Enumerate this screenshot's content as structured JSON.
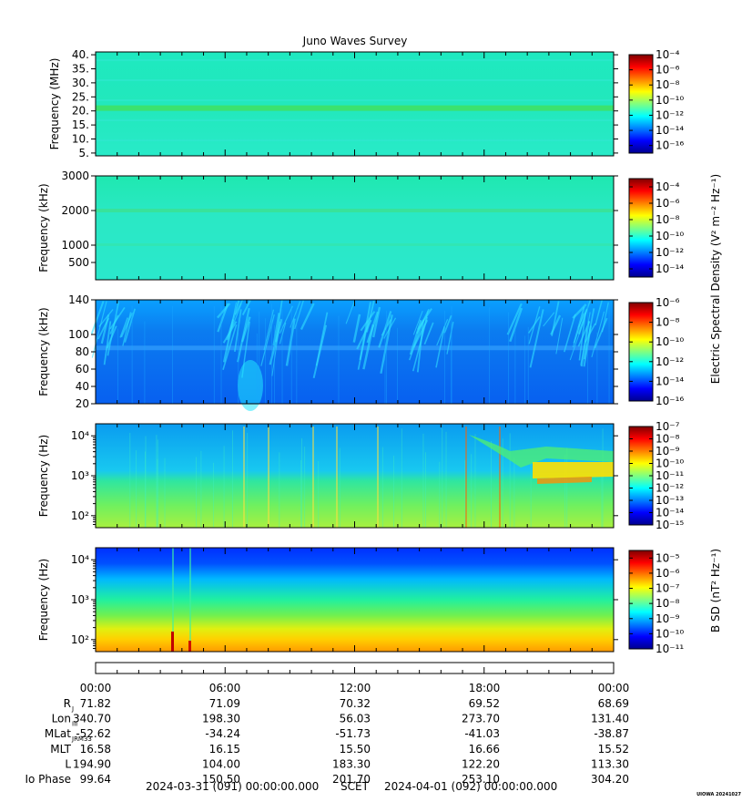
{
  "title": "Juno Waves Survey",
  "credit": "UIOWA 20241027",
  "colors": {
    "jet": [
      "#00008f",
      "#0000ff",
      "#0080ff",
      "#00ffff",
      "#80ff80",
      "#ffff00",
      "#ff8000",
      "#ff0000",
      "#800000"
    ]
  },
  "chart_data": [
    {
      "type": "heatmap",
      "title": "Juno Waves Survey",
      "ylabel": "Frequency (MHz)",
      "yscale": "linear",
      "ylim": [
        4,
        41
      ],
      "yticks": [
        {
          "v": 5,
          "t": "5."
        },
        {
          "v": 10,
          "t": "10."
        },
        {
          "v": 15,
          "t": "15."
        },
        {
          "v": 20,
          "t": "20."
        },
        {
          "v": 25,
          "t": "25."
        },
        {
          "v": 30,
          "t": "30."
        },
        {
          "v": 35,
          "t": "35."
        },
        {
          "v": 40,
          "t": "40."
        }
      ],
      "colorbar": {
        "scale": "log",
        "range_exp": [
          -17,
          -4
        ],
        "tick_exps": [
          -4,
          -6,
          -8,
          -10,
          -12,
          -14,
          -16
        ]
      },
      "pattern": "flat-band"
    },
    {
      "type": "heatmap",
      "ylabel": "Frequency (kHz)",
      "yscale": "linear",
      "ylim": [
        0,
        3000
      ],
      "yticks": [
        {
          "v": 500,
          "t": "500"
        },
        {
          "v": 1000,
          "t": "1000"
        },
        {
          "v": 2000,
          "t": "2000"
        },
        {
          "v": 3000,
          "t": "3000"
        }
      ],
      "colorbar": {
        "scale": "log",
        "range_exp": [
          -15,
          -3
        ],
        "tick_exps": [
          -4,
          -6,
          -8,
          -10,
          -12,
          -14
        ],
        "label": "Electric Spectral Density (V² m⁻² Hz⁻¹)"
      },
      "pattern": "flat"
    },
    {
      "type": "heatmap",
      "ylabel": "Frequency (kHz)",
      "yscale": "linear",
      "ylim": [
        20,
        140
      ],
      "yticks": [
        {
          "v": 20,
          "t": "20"
        },
        {
          "v": 40,
          "t": "40"
        },
        {
          "v": 60,
          "t": "60"
        },
        {
          "v": 80,
          "t": "80"
        },
        {
          "v": 100,
          "t": "100"
        },
        {
          "v": 140,
          "t": "140"
        }
      ],
      "colorbar": {
        "scale": "log",
        "range_exp": [
          -16,
          -6
        ],
        "tick_exps": [
          -6,
          -8,
          -10,
          -12,
          -14,
          -16
        ]
      },
      "pattern": "hom"
    },
    {
      "type": "heatmap",
      "ylabel": "Frequency (Hz)",
      "yscale": "log",
      "ylim": [
        50,
        20000
      ],
      "yticks": [
        {
          "v": 100,
          "t": "10²"
        },
        {
          "v": 1000,
          "t": "10³"
        },
        {
          "v": 10000,
          "t": "10⁴"
        }
      ],
      "colorbar": {
        "scale": "log",
        "range_exp": [
          -15,
          -7
        ],
        "tick_exps": [
          -7,
          -8,
          -9,
          -10,
          -11,
          -12,
          -13,
          -14,
          -15
        ]
      },
      "pattern": "lowfreq"
    },
    {
      "type": "heatmap",
      "ylabel": "Frequency (Hz)",
      "yscale": "log",
      "ylim": [
        50,
        20000
      ],
      "yticks": [
        {
          "v": 100,
          "t": "10²"
        },
        {
          "v": 1000,
          "t": "10³"
        },
        {
          "v": 10000,
          "t": "10⁴"
        }
      ],
      "colorbar": {
        "scale": "log",
        "range_exp": [
          -11,
          -4.5
        ],
        "tick_exps": [
          -5,
          -6,
          -7,
          -8,
          -9,
          -10,
          -11
        ],
        "label": "B SD (nT² Hz⁻¹)"
      },
      "pattern": "magnetic"
    }
  ],
  "ephemeris": {
    "time_labels": [
      "00:00",
      "06:00",
      "12:00",
      "18:00",
      "00:00"
    ],
    "rows": [
      {
        "label": "R",
        "sub": "J",
        "values": [
          "71.82",
          "71.09",
          "70.32",
          "69.52",
          "68.69"
        ]
      },
      {
        "label": "Lon",
        "sub": "III",
        "values": [
          "340.70",
          "198.30",
          "56.03",
          "273.70",
          "131.40"
        ]
      },
      {
        "label": "MLat",
        "sub": "JRM33",
        "values": [
          "-52.62",
          "-34.24",
          "-51.73",
          "-41.03",
          "-38.87"
        ]
      },
      {
        "label": "MLT",
        "sub": "",
        "values": [
          "16.58",
          "16.15",
          "15.50",
          "16.66",
          "15.52"
        ]
      },
      {
        "label": "L",
        "sub": "",
        "values": [
          "194.90",
          "104.00",
          "183.30",
          "122.20",
          "113.30"
        ]
      },
      {
        "label": "Io Phase",
        "sub": "",
        "values": [
          "99.64",
          "150.50",
          "201.70",
          "253.10",
          "304.20"
        ]
      }
    ],
    "scet_start": "2024-03-31 (091) 00:00:00.000",
    "scet_label": "SCET",
    "scet_end": "2024-04-01 (092) 00:00:00.000"
  }
}
